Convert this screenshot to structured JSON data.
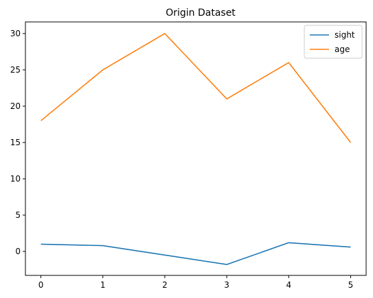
{
  "chart_data": {
    "type": "line",
    "title": "Origin Dataset",
    "x": [
      0,
      1,
      2,
      3,
      4,
      5
    ],
    "xticks": [
      "0",
      "1",
      "2",
      "3",
      "4",
      "5"
    ],
    "yticks": [
      "0",
      "5",
      "10",
      "15",
      "20",
      "25",
      "30"
    ],
    "xlim": [
      -0.25,
      5.25
    ],
    "ylim": [
      -3.3,
      31.6
    ],
    "grid": false,
    "legend_position": "top-right",
    "series": [
      {
        "name": "sight",
        "color": "#1f77b4",
        "values": [
          1.0,
          0.8,
          -0.5,
          -1.8,
          1.2,
          0.6
        ]
      },
      {
        "name": "age",
        "color": "#ff7f0e",
        "values": [
          18,
          25,
          30,
          21,
          26,
          15
        ]
      }
    ]
  }
}
